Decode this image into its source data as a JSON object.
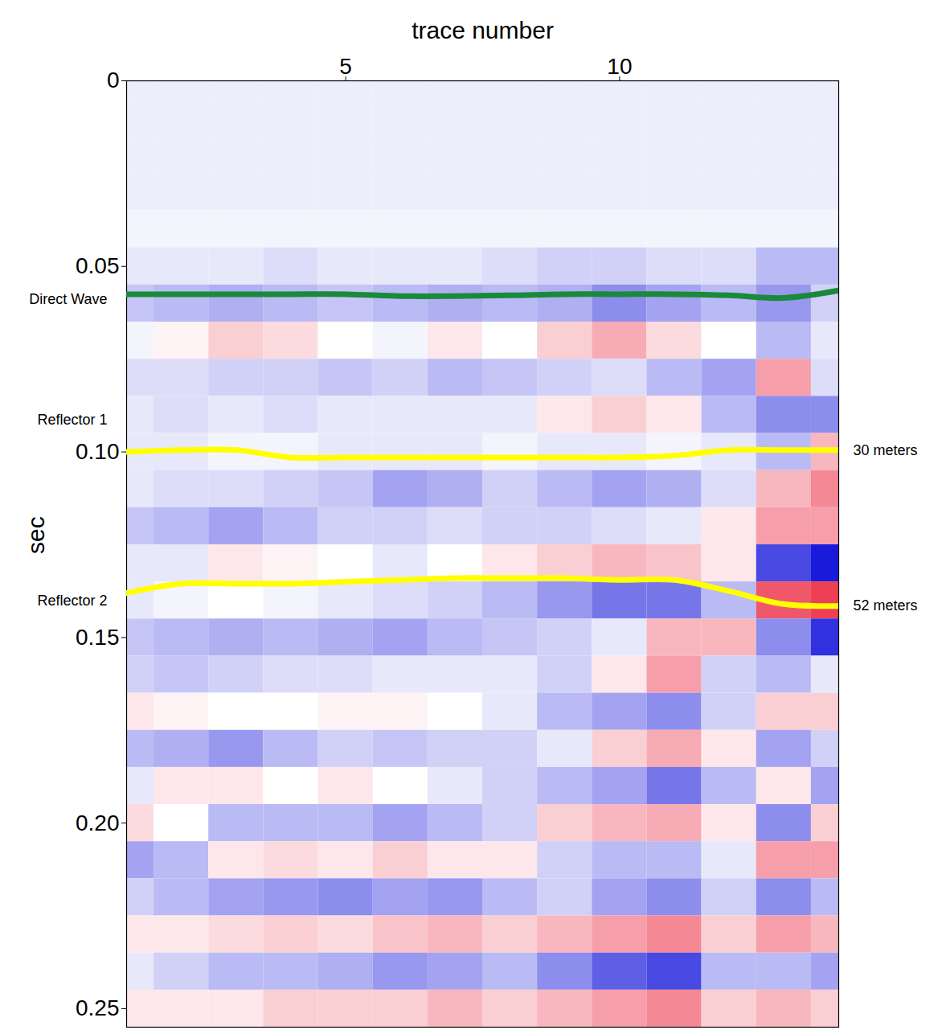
{
  "chart_data": {
    "type": "heatmap",
    "xlabel": "trace number",
    "ylabel": "sec",
    "xlim": [
      1,
      14
    ],
    "ylim": [
      0,
      0.255
    ],
    "xticks": [
      5,
      10
    ],
    "yticks": [
      0,
      0.05,
      {
        "value": 0.1,
        "label": "0.10"
      },
      0.15,
      {
        "value": 0.2,
        "label": "0.20"
      },
      0.25
    ],
    "grid": false,
    "x": [
      1,
      2,
      3,
      4,
      5,
      6,
      7,
      8,
      9,
      10,
      11,
      12,
      13,
      14
    ],
    "series": [
      {
        "name": "Direct Wave",
        "type": "line",
        "color": "#1a8a3a",
        "values": [
          0.0575,
          0.0575,
          0.0575,
          0.0575,
          0.0575,
          0.058,
          0.058,
          0.0578,
          0.0575,
          0.0575,
          0.0575,
          0.0578,
          0.0585,
          0.0565
        ]
      },
      {
        "name": "Reflector 1",
        "type": "line",
        "color": "#ffff00",
        "end_label": "30 meters",
        "values": [
          0.1,
          0.0995,
          0.0995,
          0.1015,
          0.1015,
          0.1015,
          0.1015,
          0.1015,
          0.1015,
          0.1015,
          0.101,
          0.0995,
          0.0995,
          0.0995
        ]
      },
      {
        "name": "Reflector 2",
        "type": "line",
        "color": "#ffff00",
        "end_label": "52 meters",
        "values": [
          0.138,
          0.1355,
          0.1355,
          0.1355,
          0.135,
          0.1345,
          0.134,
          0.134,
          0.134,
          0.1345,
          0.1345,
          0.1375,
          0.141,
          0.1415
        ]
      }
    ],
    "amplitude_lim": [
      -1,
      1
    ],
    "cells": {
      "times": [
        0,
        0.01,
        0.02,
        0.03,
        0.04,
        0.05,
        0.06,
        0.07,
        0.08,
        0.09,
        0.1,
        0.11,
        0.12,
        0.13,
        0.14,
        0.15,
        0.16,
        0.17,
        0.18,
        0.19,
        0.2,
        0.21,
        0.22,
        0.23,
        0.24,
        0.25
      ],
      "amplitude": [
        [
          -0.08,
          -0.08,
          -0.08,
          -0.08,
          -0.08,
          -0.08,
          -0.08,
          -0.08,
          -0.08,
          -0.08,
          -0.08,
          -0.08,
          -0.08,
          -0.08
        ],
        [
          -0.08,
          -0.08,
          -0.08,
          -0.08,
          -0.08,
          -0.08,
          -0.08,
          -0.08,
          -0.08,
          -0.08,
          -0.08,
          -0.08,
          -0.08,
          -0.08
        ],
        [
          -0.08,
          -0.08,
          -0.08,
          -0.08,
          -0.08,
          -0.08,
          -0.08,
          -0.08,
          -0.08,
          -0.08,
          -0.08,
          -0.08,
          -0.08,
          -0.08
        ],
        [
          -0.08,
          -0.08,
          -0.08,
          -0.08,
          -0.08,
          -0.08,
          -0.08,
          -0.08,
          -0.08,
          -0.08,
          -0.08,
          -0.08,
          -0.08,
          -0.08
        ],
        [
          -0.05,
          -0.05,
          -0.05,
          -0.05,
          -0.05,
          -0.05,
          -0.05,
          -0.05,
          -0.05,
          -0.05,
          -0.05,
          -0.05,
          -0.05,
          -0.05
        ],
        [
          -0.1,
          -0.1,
          -0.1,
          -0.15,
          -0.1,
          -0.1,
          -0.1,
          -0.15,
          -0.2,
          -0.2,
          -0.15,
          -0.15,
          -0.3,
          -0.3
        ],
        [
          -0.25,
          -0.3,
          -0.35,
          -0.3,
          -0.25,
          -0.3,
          -0.35,
          -0.3,
          -0.35,
          -0.5,
          -0.4,
          -0.3,
          -0.45,
          -0.2
        ],
        [
          -0.05,
          0.05,
          0.2,
          0.15,
          0,
          -0.05,
          0.1,
          0,
          0.2,
          0.35,
          0.15,
          0,
          -0.3,
          -0.1
        ],
        [
          -0.15,
          -0.15,
          -0.2,
          -0.2,
          -0.25,
          -0.2,
          -0.3,
          -0.25,
          -0.2,
          -0.15,
          -0.3,
          -0.4,
          0.4,
          -0.15
        ],
        [
          -0.1,
          -0.15,
          -0.1,
          -0.15,
          -0.1,
          -0.1,
          -0.1,
          -0.1,
          0.1,
          0.2,
          0.1,
          -0.3,
          -0.5,
          -0.5
        ],
        [
          -0.1,
          -0.1,
          -0.05,
          -0.05,
          -0.1,
          -0.1,
          -0.1,
          -0.05,
          -0.1,
          -0.1,
          -0.05,
          -0.1,
          -0.3,
          0.3
        ],
        [
          -0.1,
          -0.15,
          -0.15,
          -0.2,
          -0.25,
          -0.4,
          -0.35,
          -0.2,
          -0.3,
          -0.4,
          -0.35,
          -0.15,
          0.3,
          0.5
        ],
        [
          -0.25,
          -0.3,
          -0.4,
          -0.3,
          -0.2,
          -0.2,
          -0.15,
          -0.2,
          -0.2,
          -0.15,
          -0.1,
          0.1,
          0.4,
          0.4
        ],
        [
          -0.1,
          -0.1,
          0.1,
          0.05,
          0,
          -0.1,
          0,
          0.1,
          0.2,
          0.3,
          0.25,
          0.1,
          -0.8,
          -1
        ],
        [
          -0.1,
          -0.05,
          0,
          -0.05,
          -0.1,
          -0.15,
          -0.2,
          -0.3,
          -0.45,
          -0.6,
          -0.6,
          -0.3,
          0.7,
          0.8
        ],
        [
          -0.25,
          -0.3,
          -0.35,
          -0.3,
          -0.35,
          -0.4,
          -0.3,
          -0.25,
          -0.2,
          -0.1,
          0.3,
          0.3,
          -0.5,
          -0.9
        ],
        [
          -0.2,
          -0.25,
          -0.2,
          -0.15,
          -0.15,
          -0.1,
          -0.1,
          -0.1,
          -0.2,
          0.1,
          0.4,
          -0.2,
          -0.3,
          -0.1
        ],
        [
          0.1,
          0.05,
          0,
          0,
          0.05,
          0.05,
          0,
          -0.1,
          -0.3,
          -0.4,
          -0.5,
          -0.2,
          0.2,
          0.2
        ],
        [
          -0.3,
          -0.35,
          -0.45,
          -0.3,
          -0.2,
          -0.25,
          -0.2,
          -0.2,
          -0.1,
          0.2,
          0.35,
          0.1,
          -0.4,
          -0.2
        ],
        [
          -0.1,
          0.1,
          0.1,
          0,
          0.1,
          0,
          -0.1,
          -0.2,
          -0.3,
          -0.4,
          -0.6,
          -0.3,
          0.1,
          -0.4
        ],
        [
          0.15,
          0,
          -0.3,
          -0.3,
          -0.3,
          -0.4,
          -0.3,
          -0.2,
          0.2,
          0.3,
          0.35,
          0.1,
          -0.5,
          0.2
        ],
        [
          -0.4,
          -0.3,
          0.1,
          0.15,
          0.1,
          0.2,
          0.1,
          0.1,
          -0.2,
          -0.3,
          -0.3,
          -0.1,
          0.4,
          0.4
        ],
        [
          -0.2,
          -0.3,
          -0.4,
          -0.45,
          -0.5,
          -0.4,
          -0.45,
          -0.3,
          -0.2,
          -0.4,
          -0.5,
          -0.2,
          -0.5,
          -0.3
        ],
        [
          0.1,
          0.1,
          0.15,
          0.2,
          0.15,
          0.25,
          0.3,
          0.2,
          0.3,
          0.4,
          0.5,
          0.2,
          0.4,
          0.3
        ],
        [
          -0.1,
          -0.2,
          -0.3,
          -0.3,
          -0.35,
          -0.45,
          -0.4,
          -0.3,
          -0.5,
          -0.7,
          -0.8,
          -0.3,
          -0.3,
          -0.4
        ],
        [
          0.1,
          0.1,
          0.1,
          0.2,
          0.2,
          0.2,
          0.3,
          0.2,
          0.3,
          0.4,
          0.5,
          0.2,
          0.3,
          0.2
        ]
      ]
    }
  }
}
